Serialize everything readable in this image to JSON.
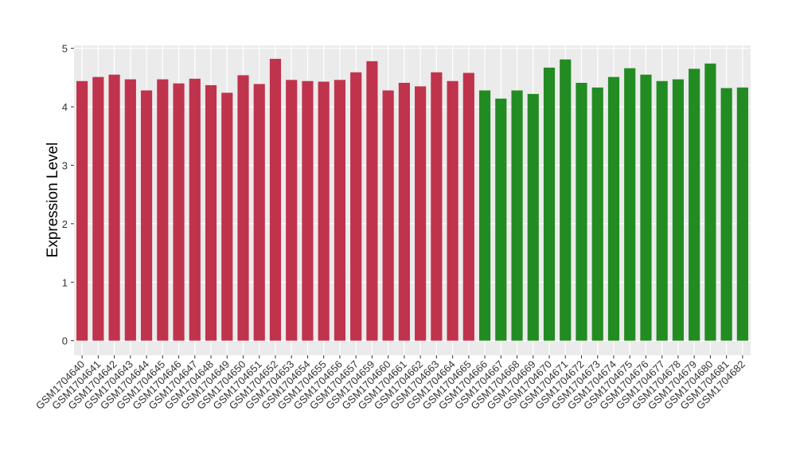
{
  "chart_data": {
    "type": "bar",
    "y_label": "Expression Level",
    "categories": [
      "GSM1704640",
      "GSM1704641",
      "GSM1704642",
      "GSM1704643",
      "GSM1704644",
      "GSM1704645",
      "GSM1704646",
      "GSM1704647",
      "GSM1704648",
      "GSM1704649",
      "GSM1704650",
      "GSM1704651",
      "GSM1704652",
      "GSM1704653",
      "GSM1704654",
      "GSM1704655",
      "GSM1704656",
      "GSM1704657",
      "GSM1704659",
      "GSM1704660",
      "GSM1704661",
      "GSM1704662",
      "GSM1704663",
      "GSM1704664",
      "GSM1704665",
      "GSM1704666",
      "GSM1704667",
      "GSM1704668",
      "GSM1704669",
      "GSM1704670",
      "GSM1704671",
      "GSM1704672",
      "GSM1704673",
      "GSM1704674",
      "GSM1704675",
      "GSM1704676",
      "GSM1704677",
      "GSM1704678",
      "GSM1704679",
      "GSM1704680",
      "GSM1704681",
      "GSM1704682"
    ],
    "values": [
      4.44,
      4.51,
      4.55,
      4.47,
      4.28,
      4.47,
      4.4,
      4.48,
      4.37,
      4.24,
      4.54,
      4.39,
      4.82,
      4.46,
      4.44,
      4.43,
      4.46,
      4.59,
      4.78,
      4.28,
      4.41,
      4.35,
      4.59,
      4.44,
      4.58,
      4.28,
      4.14,
      4.28,
      4.22,
      4.67,
      4.81,
      4.41,
      4.33,
      4.51,
      4.66,
      4.55,
      4.44,
      4.47,
      4.65,
      4.74,
      4.32,
      4.33
    ],
    "colors": [
      "#c0334d",
      "#c0334d",
      "#c0334d",
      "#c0334d",
      "#c0334d",
      "#c0334d",
      "#c0334d",
      "#c0334d",
      "#c0334d",
      "#c0334d",
      "#c0334d",
      "#c0334d",
      "#c0334d",
      "#c0334d",
      "#c0334d",
      "#c0334d",
      "#c0334d",
      "#c0334d",
      "#c0334d",
      "#c0334d",
      "#c0334d",
      "#c0334d",
      "#c0334d",
      "#c0334d",
      "#c0334d",
      "#228b22",
      "#228b22",
      "#228b22",
      "#228b22",
      "#228b22",
      "#228b22",
      "#228b22",
      "#228b22",
      "#228b22",
      "#228b22",
      "#228b22",
      "#228b22",
      "#228b22",
      "#228b22",
      "#228b22",
      "#228b22",
      "#228b22"
    ],
    "ylim": [
      -0.25,
      5.05
    ],
    "yticks": [
      0,
      1,
      2,
      3,
      4,
      5
    ],
    "grid": true
  }
}
